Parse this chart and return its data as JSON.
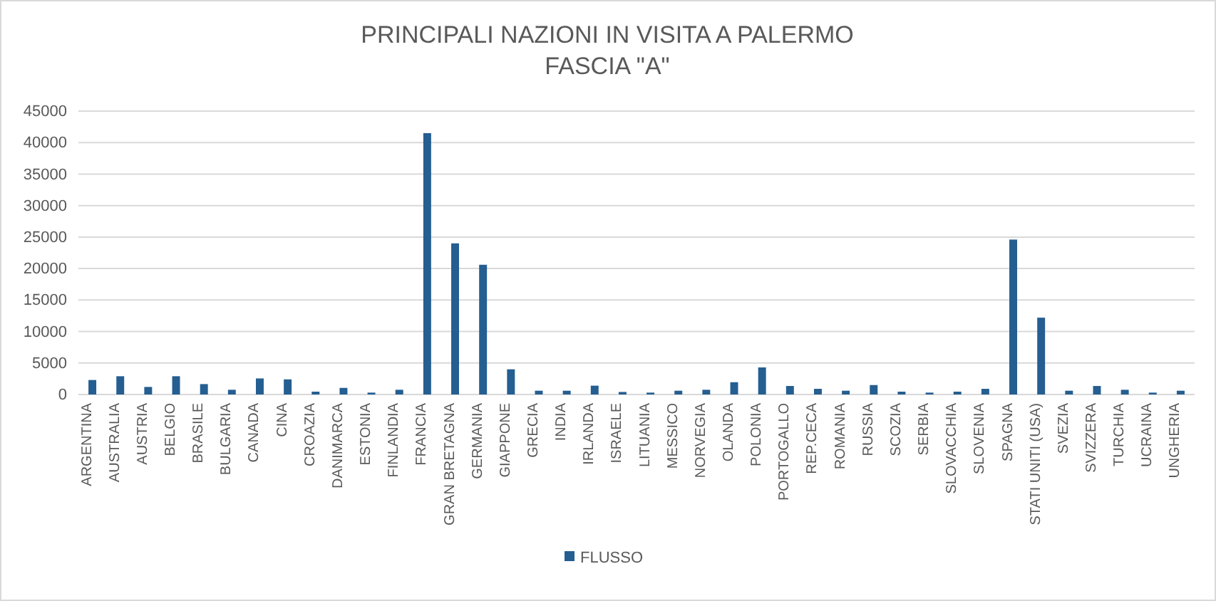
{
  "chart_data": {
    "type": "bar",
    "title": "PRINCIPALI NAZIONI IN VISITA A PALERMO",
    "subtitle": "FASCIA \"A\"",
    "categories": [
      "ARGENTINA",
      "AUSTRALIA",
      "AUSTRIA",
      "BELGIO",
      "BRASILE",
      "BULGARIA",
      "CANADA",
      "CINA",
      "CROAZIA",
      "DANIMARCA",
      "ESTONIA",
      "FINLANDIA",
      "FRANCIA",
      "GRAN BRETAGNA",
      "GERMANIA",
      "GIAPPONE",
      "GRECIA",
      "INDIA",
      "IRLANDA",
      "ISRAELE",
      "LITUANIA",
      "MESSICO",
      "NORVEGIA",
      "OLANDA",
      "POLONIA",
      "PORTOGALLO",
      "REP.CECA",
      "ROMANIA",
      "RUSSIA",
      "SCOZIA",
      "SERBIA",
      "SLOVACCHIA",
      "SLOVENIA",
      "SPAGNA",
      "STATI UNITI (USA)",
      "SVEZIA",
      "SVIZZERA",
      "TURCHIA",
      "UCRAINA",
      "UNGHERIA"
    ],
    "series": [
      {
        "name": "FLUSSO",
        "color": "#255e91",
        "values": [
          2300,
          2900,
          1200,
          2900,
          1650,
          750,
          2550,
          2400,
          450,
          1050,
          300,
          750,
          41500,
          24000,
          20600,
          4000,
          600,
          600,
          1400,
          400,
          300,
          600,
          750,
          1950,
          4300,
          1350,
          900,
          600,
          1500,
          450,
          300,
          450,
          900,
          24600,
          12200,
          600,
          1350,
          750,
          300,
          600
        ]
      }
    ],
    "ylim": [
      0,
      45000
    ],
    "yticks": [
      0,
      5000,
      10000,
      15000,
      20000,
      25000,
      30000,
      35000,
      40000,
      45000
    ],
    "grid": "y",
    "legend": "bottom"
  }
}
